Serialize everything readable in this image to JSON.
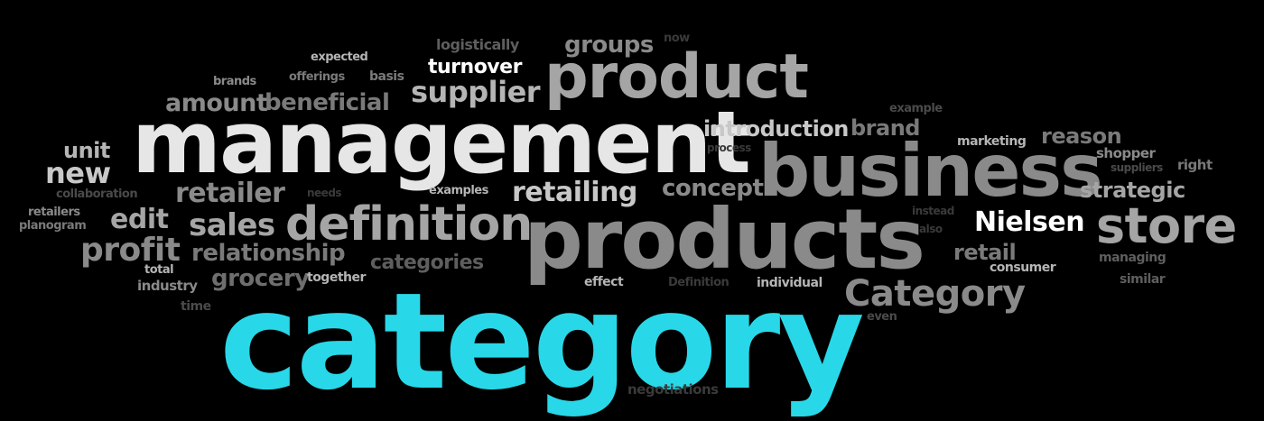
{
  "words": [
    {
      "text": "category",
      "color": "#29d8e8",
      "key": "category"
    },
    {
      "text": "management",
      "color": "#e6e6e6",
      "key": "management"
    },
    {
      "text": "products",
      "color": "#8a8a8a",
      "key": "products"
    },
    {
      "text": "business",
      "color": "#8a8a8a",
      "key": "business"
    },
    {
      "text": "product",
      "color": "#a5a5a5",
      "key": "product"
    },
    {
      "text": "definition",
      "color": "#a5a5a5",
      "key": "definition"
    },
    {
      "text": "store",
      "color": "#a5a5a5",
      "key": "store"
    },
    {
      "text": "Category",
      "color": "#8a8a8a",
      "key": "category-capital"
    },
    {
      "text": "Nielsen",
      "color": "#ffffff",
      "key": "nielsen"
    },
    {
      "text": "supplier",
      "color": "#b5b5b5",
      "key": "supplier"
    },
    {
      "text": "retailing",
      "color": "#c8c8c8",
      "key": "retailing"
    },
    {
      "text": "retailer",
      "color": "#8a8a8a",
      "key": "retailer"
    },
    {
      "text": "sales",
      "color": "#a5a5a5",
      "key": "sales"
    },
    {
      "text": "edit",
      "color": "#a5a5a5",
      "key": "edit"
    },
    {
      "text": "profit",
      "color": "#8a8a8a",
      "key": "profit"
    },
    {
      "text": "new",
      "color": "#c8c8c8",
      "key": "new"
    },
    {
      "text": "unit",
      "color": "#b5b5b5",
      "key": "unit"
    },
    {
      "text": "relationship",
      "color": "#7a7a7a",
      "key": "relationship"
    },
    {
      "text": "grocery",
      "color": "#6e6e6e",
      "key": "grocery"
    },
    {
      "text": "amount",
      "color": "#8a8a8a",
      "key": "amount"
    },
    {
      "text": "beneficial",
      "color": "#7a7a7a",
      "key": "beneficial"
    },
    {
      "text": "turnover",
      "color": "#ffffff",
      "key": "turnover"
    },
    {
      "text": "groups",
      "color": "#8a8a8a",
      "key": "groups"
    },
    {
      "text": "introduction",
      "color": "#c8c8c8",
      "key": "introduction"
    },
    {
      "text": "brand",
      "color": "#7a7a7a",
      "key": "brand"
    },
    {
      "text": "concept",
      "color": "#8a8a8a",
      "key": "concept"
    },
    {
      "text": "reason",
      "color": "#7a7a7a",
      "key": "reason"
    },
    {
      "text": "strategic",
      "color": "#a5a5a5",
      "key": "strategic"
    },
    {
      "text": "retail",
      "color": "#7a7a7a",
      "key": "retail"
    },
    {
      "text": "categories",
      "color": "#5e5e5e",
      "key": "categories"
    },
    {
      "text": "together",
      "color": "#b5b5b5",
      "key": "together"
    },
    {
      "text": "industry",
      "color": "#8a8a8a",
      "key": "industry"
    },
    {
      "text": "total",
      "color": "#b5b5b5",
      "key": "total"
    },
    {
      "text": "effect",
      "color": "#b5b5b5",
      "key": "effect"
    },
    {
      "text": "individual",
      "color": "#b5b5b5",
      "key": "individual"
    },
    {
      "text": "consumer",
      "color": "#b5b5b5",
      "key": "consumer"
    },
    {
      "text": "marketing",
      "color": "#b5b5b5",
      "key": "marketing"
    },
    {
      "text": "shopper",
      "color": "#8a8a8a",
      "key": "shopper"
    },
    {
      "text": "examples",
      "color": "#b5b5b5",
      "key": "examples"
    },
    {
      "text": "expected",
      "color": "#b5b5b5",
      "key": "expected"
    },
    {
      "text": "basis",
      "color": "#7a7a7a",
      "key": "basis"
    },
    {
      "text": "brands",
      "color": "#8a8a8a",
      "key": "brands"
    },
    {
      "text": "logistically",
      "color": "#5e5e5e",
      "key": "logistically"
    },
    {
      "text": "retailers",
      "color": "#8a8a8a",
      "key": "retailers"
    },
    {
      "text": "planogram",
      "color": "#7a7a7a",
      "key": "planogram"
    },
    {
      "text": "collaboration",
      "color": "#4a4a4a",
      "key": "collaboration"
    },
    {
      "text": "negotiations",
      "color": "#3a3a3a",
      "key": "negotiations"
    },
    {
      "text": "right",
      "color": "#7a7a7a",
      "key": "right"
    },
    {
      "text": "managing",
      "color": "#5e5e5e",
      "key": "managing"
    },
    {
      "text": "similar",
      "color": "#5e5e5e",
      "key": "similar"
    },
    {
      "text": "time",
      "color": "#4a4a4a",
      "key": "time"
    },
    {
      "text": "offerings",
      "color": "#7a7a7a",
      "key": "offerings"
    },
    {
      "text": "even",
      "color": "#4a4a4a",
      "key": "even"
    },
    {
      "text": "example",
      "color": "#4a4a4a",
      "key": "example"
    },
    {
      "text": "process",
      "color": "#3a3a3a",
      "key": "process"
    },
    {
      "text": "needs",
      "color": "#3a3a3a",
      "key": "needs"
    },
    {
      "text": "instead",
      "color": "#3a3a3a",
      "key": "instead"
    },
    {
      "text": "also",
      "color": "#3a3a3a",
      "key": "also"
    },
    {
      "text": "suppliers",
      "color": "#4a4a4a",
      "key": "suppliers"
    },
    {
      "text": "Definition",
      "color": "#3a3a3a",
      "key": "definition-capital"
    },
    {
      "text": "now",
      "color": "#3a3a3a",
      "key": "now"
    }
  ]
}
